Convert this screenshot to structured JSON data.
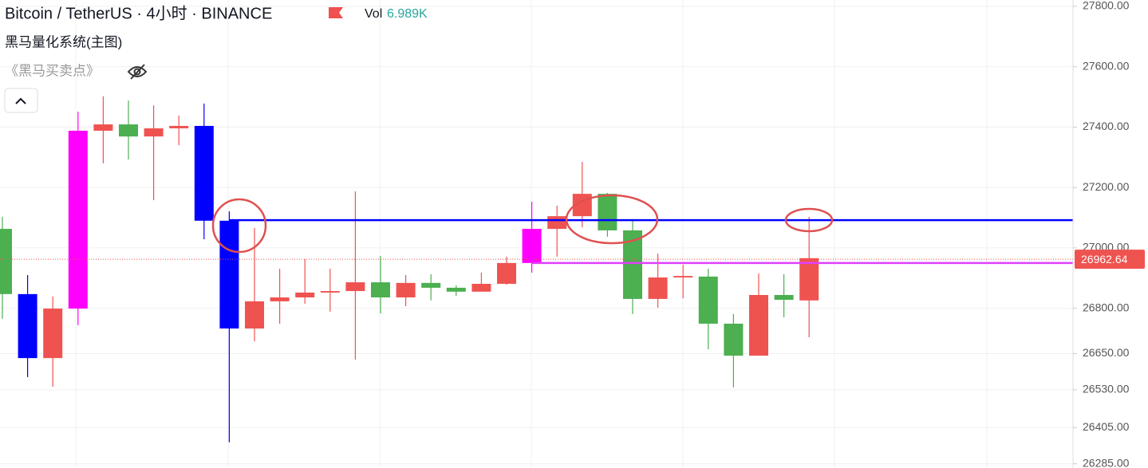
{
  "header": {
    "title": "Bitcoin / TetherUS · 4小时 · BINANCE",
    "vol_label": "Vol",
    "vol_value": "6.989K",
    "indicator": "黑马量化系统(主图)",
    "sub_indicator": "《黑马买卖点》"
  },
  "chart_data": {
    "type": "candlestick",
    "open": [
      27063,
      26847,
      26635,
      26799,
      27388,
      27409,
      27369,
      27396,
      27404,
      27090,
      26733,
      26823,
      26836,
      26852,
      26857,
      26886,
      26836,
      26884,
      26868,
      26855,
      26881,
      26950,
      27063,
      27105,
      27179,
      27058,
      26831,
      26902,
      26905,
      26749,
      26643,
      26844,
      26826
    ],
    "high": [
      27103,
      26910,
      26839,
      27451,
      27502,
      27488,
      27472,
      27438,
      27478,
      27121,
      27066,
      26931,
      26963,
      26931,
      27187,
      26973,
      26910,
      26913,
      26876,
      26918,
      26971,
      27153,
      27140,
      27285,
      27182,
      27095,
      26981,
      26944,
      26931,
      26781,
      26915,
      26913,
      27103
    ],
    "low": [
      26765,
      26572,
      26540,
      26744,
      27280,
      27293,
      27158,
      27340,
      27029,
      26356,
      26691,
      26749,
      26815,
      26789,
      26630,
      26783,
      26807,
      26826,
      26841,
      26855,
      26878,
      26918,
      26971,
      27068,
      27037,
      26781,
      26802,
      26833,
      26664,
      26538,
      26643,
      26770,
      26704
    ],
    "close": [
      26847,
      26635,
      26799,
      27388,
      27409,
      27369,
      27396,
      27404,
      27090,
      26733,
      26823,
      26836,
      26852,
      26857,
      26886,
      26836,
      26884,
      26868,
      26855,
      26881,
      26950,
      27063,
      27105,
      27179,
      27058,
      26831,
      26902,
      26907,
      26749,
      26643,
      26844,
      26828,
      26966
    ],
    "colors": [
      "#4caf50",
      "#0000ff",
      "#ef5350",
      "#ff00ff",
      "#ef5350",
      "#4caf50",
      "#ef5350",
      "#ef5350",
      "#0000ff",
      "#0000ff",
      "#ef5350",
      "#ef5350",
      "#ef5350",
      "#ef5350",
      "#ef5350",
      "#4caf50",
      "#ef5350",
      "#4caf50",
      "#4caf50",
      "#ef5350",
      "#ef5350",
      "#ff00ff",
      "#ef5350",
      "#ef5350",
      "#4caf50",
      "#4caf50",
      "#ef5350",
      "#ef5350",
      "#4caf50",
      "#4caf50",
      "#ef5350",
      "#4caf50",
      "#ef5350"
    ],
    "hlines": [
      {
        "value": 27092,
        "color": "#0000ff"
      },
      {
        "value": 26950,
        "color": "#e040fb"
      }
    ],
    "last_price": 26962.64,
    "ylim": [
      26271,
      27821
    ],
    "yticks": [
      {
        "value": 27800,
        "label": "27800.00"
      },
      {
        "value": 27600,
        "label": "27600.00"
      },
      {
        "value": 27400,
        "label": "27400.00"
      },
      {
        "value": 27200,
        "label": "27200.00"
      },
      {
        "value": 27000,
        "label": "27000.00"
      },
      {
        "value": 26800,
        "label": "26800.00"
      },
      {
        "value": 26650,
        "label": "26650.00"
      },
      {
        "value": 26530,
        "label": "26530.00"
      },
      {
        "value": 26405,
        "label": "26405.00"
      },
      {
        "value": 26285,
        "label": "26285.00"
      }
    ],
    "grid": true
  }
}
